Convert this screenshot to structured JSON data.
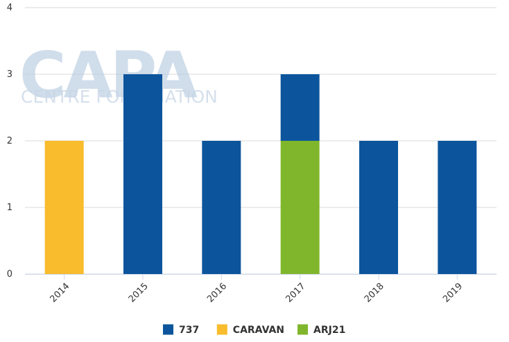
{
  "watermark": {
    "logo_text": "CAPA",
    "tagline": "CENTRE FOR AVIATION"
  },
  "chart_data": {
    "type": "bar",
    "stacked": true,
    "title": "",
    "xlabel": "",
    "ylabel": "",
    "categories": [
      "2014",
      "2015",
      "2016",
      "2017",
      "2018",
      "2019"
    ],
    "ylim": [
      0,
      4
    ],
    "yticks": [
      0,
      1,
      2,
      3,
      4
    ],
    "grid": true,
    "legend_position": "bottom",
    "series": [
      {
        "name": "737",
        "color": "#0c559c",
        "values": [
          0,
          3,
          2,
          1,
          2,
          2
        ]
      },
      {
        "name": "CARAVAN",
        "color": "#f8bc2c",
        "values": [
          2,
          0,
          0,
          0,
          0,
          0
        ]
      },
      {
        "name": "ARJ21",
        "color": "#80b62c",
        "values": [
          0,
          0,
          0,
          2,
          0,
          0
        ]
      }
    ],
    "stack_order_bottom_to_top": [
      "CARAVAN",
      "ARJ21",
      "737"
    ]
  }
}
